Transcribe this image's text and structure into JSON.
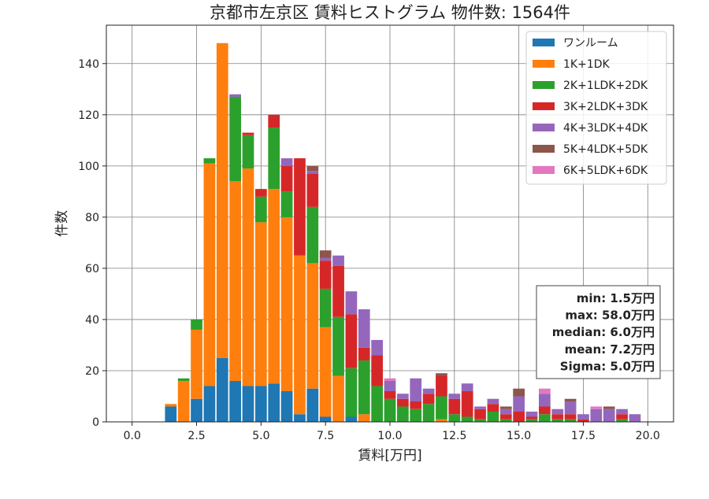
{
  "chart_data": {
    "type": "bar",
    "stacked": true,
    "title": "京都市左京区 賃料ヒストグラム 物件数: 1564件",
    "xlabel": "賃料[万円]",
    "ylabel": "件数",
    "xlim": [
      -1.0,
      21.0
    ],
    "ylim": [
      0,
      155
    ],
    "xticks": [
      0.0,
      2.5,
      5.0,
      7.5,
      10.0,
      12.5,
      15.0,
      17.5,
      20.0
    ],
    "xtick_labels": [
      "0.0",
      "2.5",
      "5.0",
      "7.5",
      "10.0",
      "12.5",
      "15.0",
      "17.5",
      "20.0"
    ],
    "yticks": [
      0,
      20,
      40,
      60,
      80,
      100,
      120,
      140
    ],
    "ytick_labels": [
      "0",
      "20",
      "40",
      "60",
      "80",
      "100",
      "120",
      "140"
    ],
    "grid": true,
    "legend_position": "top-right",
    "bin_width": 0.5,
    "x": [
      1.5,
      2.0,
      2.5,
      3.0,
      3.5,
      4.0,
      4.5,
      5.0,
      5.5,
      6.0,
      6.5,
      7.0,
      7.5,
      8.0,
      8.5,
      9.0,
      9.5,
      10.0,
      10.5,
      11.0,
      11.5,
      12.0,
      12.5,
      13.0,
      13.5,
      14.0,
      14.5,
      15.0,
      15.5,
      16.0,
      16.5,
      17.0,
      17.5,
      18.0,
      18.5,
      19.0,
      19.5
    ],
    "series": [
      {
        "name": "ワンルーム",
        "color": "#1f77b4",
        "values": [
          6,
          0,
          9,
          14,
          25,
          16,
          14,
          14,
          15,
          12,
          3,
          13,
          2,
          0,
          2,
          0,
          0,
          0,
          0,
          0,
          0,
          0,
          0,
          0,
          0,
          0,
          0,
          0,
          0,
          0,
          0,
          0,
          0,
          0,
          0,
          0,
          0
        ]
      },
      {
        "name": "1K+1DK",
        "color": "#ff7f0e",
        "values": [
          1,
          16,
          27,
          87,
          123,
          78,
          85,
          64,
          76,
          68,
          62,
          49,
          35,
          18,
          0,
          3,
          0,
          0,
          0,
          0,
          0,
          1,
          0,
          0,
          0,
          0,
          0,
          0,
          0,
          0,
          0,
          0,
          0,
          0,
          0,
          0,
          0
        ]
      },
      {
        "name": "2K+1LDK+2DK",
        "color": "#2ca02c",
        "values": [
          0,
          1,
          4,
          2,
          0,
          33,
          13,
          10,
          24,
          10,
          0,
          22,
          15,
          23,
          19,
          21,
          14,
          9,
          6,
          5,
          7,
          9,
          3,
          2,
          1,
          4,
          1,
          0,
          1,
          3,
          1,
          1,
          0,
          0,
          0,
          1,
          0
        ]
      },
      {
        "name": "3K+2LDK+3DK",
        "color": "#d62728",
        "values": [
          0,
          0,
          0,
          0,
          0,
          0,
          1,
          3,
          5,
          10,
          38,
          13,
          11,
          20,
          21,
          5,
          12,
          3,
          3,
          3,
          4,
          8,
          6,
          10,
          4,
          3,
          2,
          4,
          1,
          3,
          2,
          2,
          1,
          0,
          0,
          2,
          0
        ]
      },
      {
        "name": "4K+3LDK+4DK",
        "color": "#9467bd",
        "values": [
          0,
          0,
          0,
          0,
          0,
          1,
          0,
          0,
          0,
          3,
          0,
          1,
          1,
          4,
          9,
          15,
          6,
          4,
          2,
          9,
          2,
          0,
          2,
          3,
          1,
          2,
          2,
          6,
          2,
          5,
          2,
          5,
          2,
          5,
          5,
          2,
          3
        ]
      },
      {
        "name": "5K+4LDK+5DK",
        "color": "#8c564b",
        "values": [
          0,
          0,
          0,
          0,
          0,
          0,
          0,
          0,
          0,
          0,
          0,
          2,
          3,
          0,
          0,
          0,
          0,
          0,
          0,
          0,
          0,
          1,
          0,
          0,
          0,
          0,
          1,
          3,
          0,
          0,
          0,
          1,
          0,
          0,
          1,
          0,
          0
        ]
      },
      {
        "name": "6K+5LDK+6DK",
        "color": "#e377c2",
        "values": [
          0,
          0,
          0,
          0,
          0,
          0,
          0,
          0,
          0,
          0,
          0,
          0,
          0,
          0,
          0,
          0,
          0,
          1,
          0,
          0,
          0,
          0,
          0,
          0,
          0,
          0,
          0,
          0,
          0,
          2,
          0,
          0,
          0,
          1,
          0,
          0,
          0
        ]
      }
    ],
    "stats": [
      "min: 1.5万円",
      "max: 58.0万円",
      "median: 6.0万円",
      "mean: 7.2万円",
      "Sigma: 5.0万円"
    ]
  }
}
